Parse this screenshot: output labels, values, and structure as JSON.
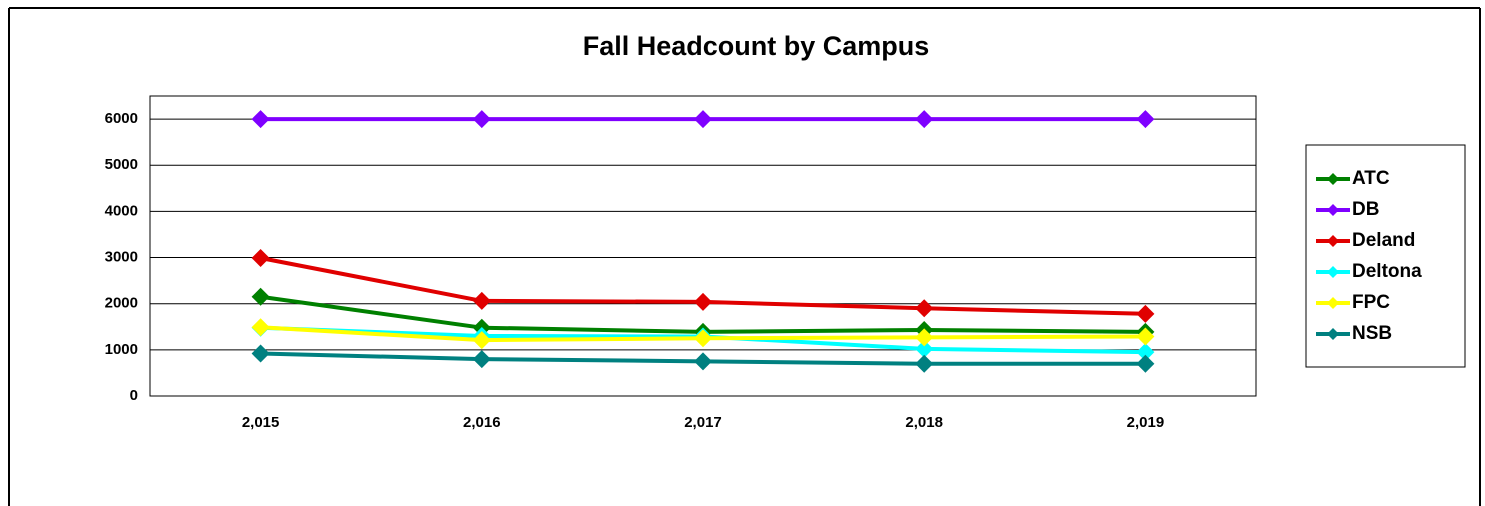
{
  "chart_data": {
    "type": "line",
    "title": "Fall Headcount by Campus",
    "categories": [
      "2,015",
      "2,016",
      "2,017",
      "2,018",
      "2,019"
    ],
    "series": [
      {
        "name": "ATC",
        "color": "#008000",
        "values": [
          2150,
          1480,
          1390,
          1430,
          1390
        ]
      },
      {
        "name": "DB",
        "color": "#7f00ff",
        "values": [
          6000,
          6000,
          6000,
          6000,
          6000
        ]
      },
      {
        "name": "Deland",
        "color": "#e00000",
        "values": [
          2990,
          2060,
          2040,
          1900,
          1780
        ]
      },
      {
        "name": "Deltona",
        "color": "#00ffff",
        "values": [
          1480,
          1300,
          1290,
          1020,
          950
        ]
      },
      {
        "name": "FPC",
        "color": "#ffff00",
        "values": [
          1490,
          1210,
          1250,
          1270,
          1290
        ]
      },
      {
        "name": "NSB",
        "color": "#008080",
        "values": [
          920,
          800,
          750,
          700,
          700
        ]
      }
    ],
    "ylim": [
      0,
      6500
    ],
    "yticks": [
      0,
      1000,
      2000,
      3000,
      4000,
      5000,
      6000
    ],
    "grid": true,
    "legend": "right"
  }
}
